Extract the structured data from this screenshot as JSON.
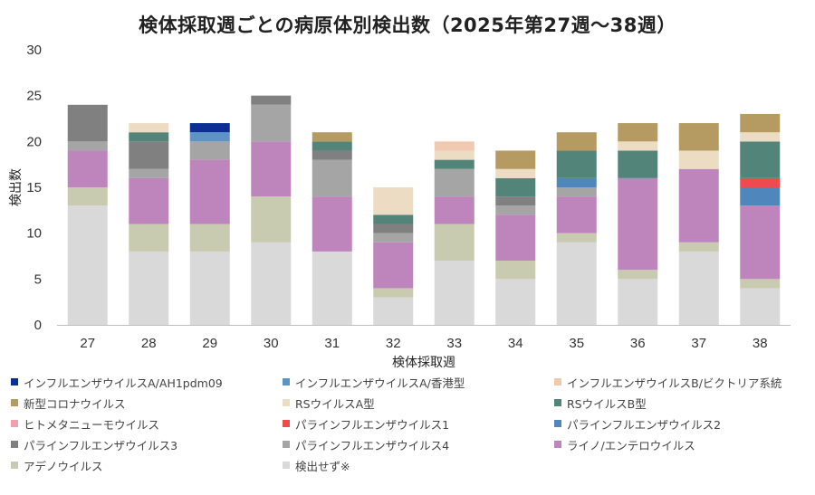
{
  "chart_data": {
    "type": "bar",
    "stacked": true,
    "title": "検体採取週ごとの病原体別検出数（2025年第27週～38週）",
    "xlabel": "検体採取週",
    "ylabel": "検出数",
    "ylim": [
      0,
      30
    ],
    "yticks": [
      0,
      5,
      10,
      15,
      20,
      25,
      30
    ],
    "grid": false,
    "legend_position": "bottom",
    "categories": [
      "27",
      "28",
      "29",
      "30",
      "31",
      "32",
      "33",
      "34",
      "35",
      "36",
      "37",
      "38"
    ],
    "series": [
      {
        "name": "検出せず※",
        "color": "#d9d9d9",
        "values": [
          13,
          8,
          8,
          9,
          8,
          3,
          7,
          5,
          9,
          5,
          8,
          4
        ]
      },
      {
        "name": "アデノウイルス",
        "color": "#c9cbb0",
        "values": [
          2,
          3,
          3,
          5,
          0,
          1,
          4,
          2,
          1,
          1,
          1,
          1
        ]
      },
      {
        "name": "ライノ/エンテロウイルス",
        "color": "#be85bd",
        "values": [
          4,
          5,
          7,
          6,
          6,
          5,
          3,
          5,
          4,
          10,
          8,
          8
        ]
      },
      {
        "name": "パラインフルエンザウイルス4",
        "color": "#a5a5a5",
        "values": [
          1,
          1,
          2,
          4,
          4,
          1,
          3,
          1,
          1,
          0,
          0,
          0
        ]
      },
      {
        "name": "パラインフルエンザウイルス3",
        "color": "#808080",
        "values": [
          4,
          3,
          0,
          1,
          1,
          1,
          0,
          1,
          0,
          0,
          0,
          0
        ]
      },
      {
        "name": "パラインフルエンザウイルス2",
        "color": "#4f86bb",
        "values": [
          0,
          0,
          0,
          0,
          0,
          0,
          0,
          0,
          1,
          0,
          0,
          2
        ]
      },
      {
        "name": "パラインフルエンザウイルス1",
        "color": "#ee4c4c",
        "values": [
          0,
          0,
          0,
          0,
          0,
          0,
          0,
          0,
          0,
          0,
          0,
          1
        ]
      },
      {
        "name": "ヒトメタニューモウイルス",
        "color": "#f0a0aa",
        "values": [
          0,
          0,
          0,
          0,
          0,
          0,
          0,
          0,
          0,
          0,
          0,
          0
        ]
      },
      {
        "name": "RSウイルスB型",
        "color": "#538479",
        "values": [
          0,
          1,
          0,
          0,
          1,
          1,
          1,
          2,
          3,
          3,
          0,
          4
        ]
      },
      {
        "name": "RSウイルスA型",
        "color": "#ecdcc3",
        "values": [
          0,
          1,
          0,
          0,
          0,
          3,
          1,
          1,
          0,
          1,
          2,
          1
        ]
      },
      {
        "name": "新型コロナウイルス",
        "color": "#b59a62",
        "values": [
          0,
          0,
          0,
          0,
          1,
          0,
          0,
          2,
          2,
          2,
          3,
          2
        ]
      },
      {
        "name": "インフルエンザウイルスB/ビクトリア系統",
        "color": "#f1c9b1",
        "values": [
          0,
          0,
          0,
          0,
          0,
          0,
          1,
          0,
          0,
          0,
          0,
          0
        ]
      },
      {
        "name": "インフルエンザウイルスA/香港型",
        "color": "#5e93c6",
        "values": [
          0,
          0,
          1,
          0,
          0,
          0,
          0,
          0,
          0,
          0,
          0,
          0
        ]
      },
      {
        "name": "インフルエンザウイルスA/AH1pdm09",
        "color": "#0d2e93",
        "values": [
          0,
          0,
          1,
          0,
          0,
          0,
          0,
          0,
          0,
          0,
          0,
          0
        ]
      }
    ],
    "legend_order": [
      "インフルエンザウイルスA/AH1pdm09",
      "インフルエンザウイルスA/香港型",
      "インフルエンザウイルスB/ビクトリア系統",
      "新型コロナウイルス",
      "RSウイルスA型",
      "RSウイルスB型",
      "ヒトメタニューモウイルス",
      "パラインフルエンザウイルス1",
      "パラインフルエンザウイルス2",
      "パラインフルエンザウイルス3",
      "パラインフルエンザウイルス4",
      "ライノ/エンテロウイルス",
      "アデノウイルス",
      "検出せず※"
    ]
  }
}
